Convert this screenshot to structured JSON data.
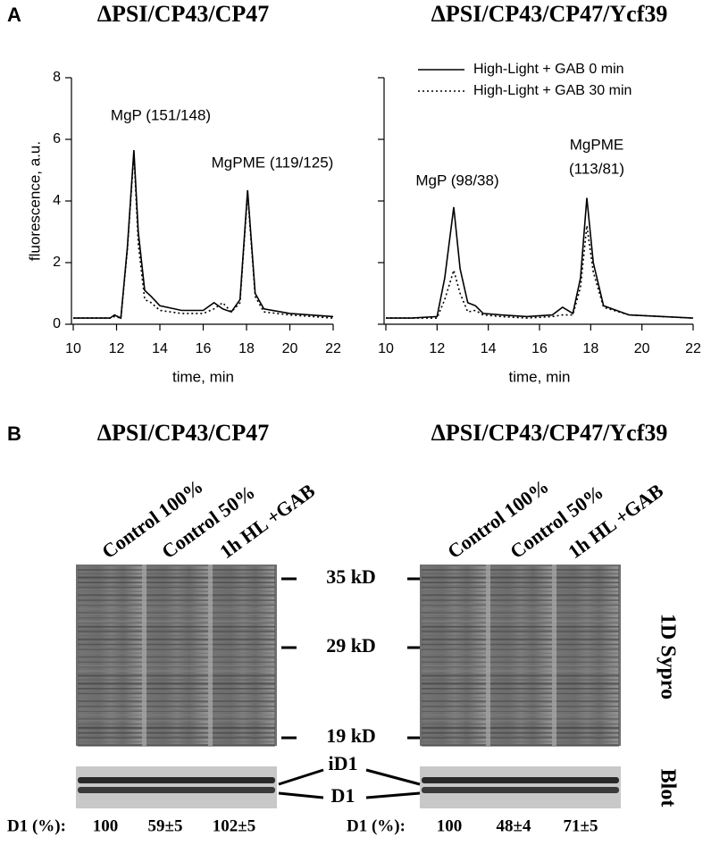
{
  "chart_data": [
    {
      "type": "line",
      "panel": "A",
      "title": "ΔPSI/CP43/CP47",
      "xlabel": "time, min",
      "ylabel": "fluorescence, a.u.",
      "xlim": [
        10,
        22
      ],
      "xticks": [
        10,
        12,
        14,
        16,
        18,
        20,
        22
      ],
      "ylim": [
        0,
        8
      ],
      "yticks": [
        0,
        2,
        4,
        6,
        8
      ],
      "ytick_labels": true,
      "annotations": [
        "MgP (151/148)",
        "MgPME (119/125)"
      ],
      "x": [
        10,
        11,
        11.7,
        11.9,
        12.2,
        12.5,
        12.8,
        13.0,
        13.3,
        13.6,
        14,
        15,
        16,
        16.5,
        16.9,
        17.3,
        17.7,
        18.05,
        18.4,
        18.8,
        20,
        22
      ],
      "series": [
        {
          "color": "#000000",
          "dash": "solid",
          "values": [
            0.2,
            0.2,
            0.2,
            0.3,
            0.2,
            2.5,
            5.65,
            3.0,
            1.1,
            0.9,
            0.6,
            0.45,
            0.45,
            0.7,
            0.5,
            0.4,
            0.8,
            4.35,
            1.0,
            0.5,
            0.35,
            0.25
          ]
        },
        {
          "color": "#000000",
          "dash": "dotted",
          "values": [
            0.2,
            0.2,
            0.2,
            0.25,
            0.2,
            2.4,
            5.55,
            2.6,
            0.8,
            0.7,
            0.45,
            0.35,
            0.35,
            0.5,
            0.7,
            0.4,
            0.7,
            4.25,
            0.9,
            0.4,
            0.3,
            0.2
          ]
        }
      ]
    },
    {
      "type": "line",
      "title": "ΔPSI/CP43/CP47/Ycf39",
      "xlabel": "time, min",
      "xlim": [
        10,
        22
      ],
      "xticks": [
        10,
        12,
        14,
        16,
        18,
        20,
        22
      ],
      "ylim": [
        0,
        8
      ],
      "yticks": [
        0,
        2,
        4,
        6,
        8
      ],
      "ytick_labels": false,
      "legend": "upper right",
      "annotations": [
        "MgP (98/38)",
        "MgPME",
        "(113/81)"
      ],
      "x": [
        10,
        11,
        12,
        12.3,
        12.65,
        12.9,
        13.2,
        13.5,
        13.8,
        14.5,
        15.5,
        16.5,
        16.9,
        17.3,
        17.6,
        17.85,
        18.1,
        18.5,
        19.5,
        22
      ],
      "series": [
        {
          "name": "High-Light + GAB 0 min",
          "color": "#000000",
          "dash": "solid",
          "values": [
            0.2,
            0.2,
            0.25,
            1.5,
            3.8,
            1.8,
            0.7,
            0.6,
            0.35,
            0.3,
            0.25,
            0.3,
            0.55,
            0.35,
            1.5,
            4.1,
            2.0,
            0.6,
            0.3,
            0.2
          ]
        },
        {
          "name": "High-Light + GAB 30 min",
          "color": "#000000",
          "dash": "dotted",
          "values": [
            0.2,
            0.2,
            0.2,
            0.8,
            1.75,
            1.0,
            0.4,
            0.45,
            0.3,
            0.25,
            0.2,
            0.25,
            0.3,
            0.3,
            1.2,
            3.2,
            1.7,
            0.55,
            0.3,
            0.2
          ]
        }
      ]
    }
  ],
  "panel_b": {
    "label": "B",
    "gels": [
      {
        "title": "ΔPSI/CP43/CP47",
        "lanes": [
          "Control 100%",
          "Control 50%",
          "1h HL +GAB"
        ],
        "d1_label": "D1 (%):",
        "d1_values": [
          100,
          "59±5",
          "102±5"
        ]
      },
      {
        "title": "ΔPSI/CP43/CP47/Ycf39",
        "lanes": [
          "Control 100%",
          "Control 50%",
          "1h HL +GAB"
        ],
        "d1_label": "D1 (%):",
        "d1_values": [
          100,
          "48±4",
          "71±5"
        ]
      }
    ],
    "markers": [
      "35 kD",
      "29 kD",
      "19 kD"
    ],
    "bands": [
      "iD1",
      "D1"
    ],
    "stain_label": "1D Sypro",
    "blot_label": "Blot"
  }
}
